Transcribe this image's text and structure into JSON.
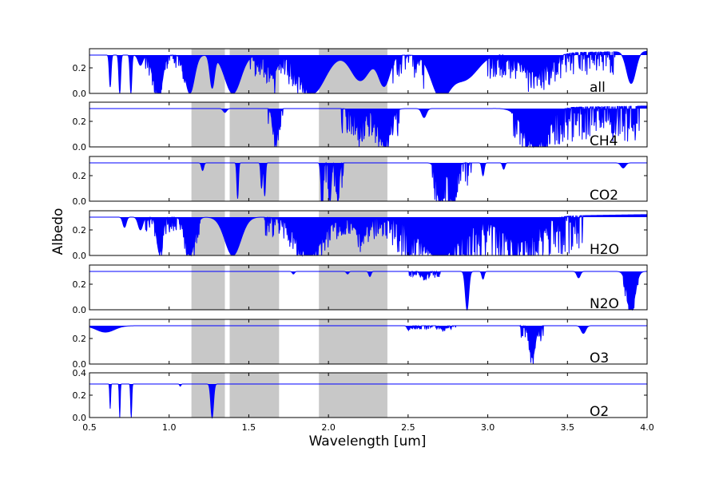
{
  "chart_data": {
    "type": "area",
    "xlabel": "Wavelength [um]",
    "ylabel": "Albedo",
    "xlim": [
      0.5,
      4.0
    ],
    "xticks": [
      "0.5",
      "1.0",
      "1.5",
      "2.0",
      "2.5",
      "3.0",
      "3.5",
      "4.0"
    ],
    "xtick_values": [
      0.5,
      1.0,
      1.5,
      2.0,
      2.5,
      3.0,
      3.5,
      4.0
    ],
    "color": "#0000ff",
    "band_color": "#c8c8c8",
    "shaded_bands": [
      [
        1.14,
        1.35
      ],
      [
        1.38,
        1.69
      ],
      [
        1.94,
        2.37
      ]
    ],
    "panels": [
      {
        "name": "all",
        "ylim": [
          0.0,
          0.35
        ],
        "yticks": [
          "0.0",
          "0.2"
        ],
        "ytick_values": [
          0.0,
          0.2
        ],
        "baseline": 0.3,
        "absorption": [
          {
            "center": 0.63,
            "width": 0.008,
            "depth": 0.25
          },
          {
            "center": 0.69,
            "width": 0.008,
            "depth": 0.3
          },
          {
            "center": 0.76,
            "width": 0.008,
            "depth": 0.3
          },
          {
            "center": 0.82,
            "width": 0.02,
            "depth": 0.08
          },
          {
            "center": 0.9,
            "width": 0.03,
            "depth": 0.12
          },
          {
            "center": 0.94,
            "width": 0.03,
            "depth": 0.28
          },
          {
            "center": 1.13,
            "width": 0.04,
            "depth": 0.3
          },
          {
            "center": 1.27,
            "width": 0.02,
            "depth": 0.25
          },
          {
            "center": 1.4,
            "width": 0.07,
            "depth": 0.3
          },
          {
            "center": 1.65,
            "width": 0.04,
            "depth": 0.15
          },
          {
            "center": 1.9,
            "width": 0.11,
            "depth": 0.3
          },
          {
            "center": 2.2,
            "width": 0.08,
            "depth": 0.2
          },
          {
            "center": 2.35,
            "width": 0.05,
            "depth": 0.24
          },
          {
            "center": 2.7,
            "width": 0.08,
            "depth": 0.3
          },
          {
            "center": 2.85,
            "width": 0.12,
            "depth": 0.2
          },
          {
            "center": 3.3,
            "width": 0.12,
            "depth": 0.15
          },
          {
            "center": 3.9,
            "width": 0.04,
            "depth": 0.25
          }
        ],
        "noise_ranges": [
          [
            0.85,
            1.1,
            0.1
          ],
          [
            1.5,
            1.9,
            0.18
          ],
          [
            2.4,
            2.6,
            0.22
          ],
          [
            3.0,
            3.8,
            0.18
          ]
        ]
      },
      {
        "name": "CH4",
        "ylim": [
          0.0,
          0.35
        ],
        "yticks": [
          "0.0",
          "0.2"
        ],
        "ytick_values": [
          0.0,
          0.2
        ],
        "baseline": 0.3,
        "absorption": [
          {
            "center": 1.35,
            "width": 0.015,
            "depth": 0.03
          },
          {
            "center": 1.67,
            "width": 0.02,
            "depth": 0.24
          },
          {
            "center": 2.2,
            "width": 0.05,
            "depth": 0.1
          },
          {
            "center": 2.35,
            "width": 0.05,
            "depth": 0.27
          },
          {
            "center": 2.6,
            "width": 0.02,
            "depth": 0.07
          },
          {
            "center": 3.3,
            "width": 0.1,
            "depth": 0.3
          }
        ],
        "noise_ranges": [
          [
            1.62,
            1.72,
            0.12
          ],
          [
            2.08,
            2.45,
            0.2
          ],
          [
            3.15,
            3.95,
            0.28
          ]
        ]
      },
      {
        "name": "CO2",
        "ylim": [
          0.0,
          0.35
        ],
        "yticks": [
          "0.0",
          "0.2"
        ],
        "ytick_values": [
          0.0,
          0.2
        ],
        "baseline": 0.3,
        "absorption": [
          {
            "center": 1.21,
            "width": 0.01,
            "depth": 0.06
          },
          {
            "center": 1.43,
            "width": 0.007,
            "depth": 0.28
          },
          {
            "center": 1.58,
            "width": 0.007,
            "depth": 0.2
          },
          {
            "center": 1.6,
            "width": 0.007,
            "depth": 0.26
          },
          {
            "center": 1.96,
            "width": 0.01,
            "depth": 0.3
          },
          {
            "center": 2.01,
            "width": 0.01,
            "depth": 0.3
          },
          {
            "center": 2.06,
            "width": 0.01,
            "depth": 0.3
          },
          {
            "center": 2.7,
            "width": 0.03,
            "depth": 0.3
          },
          {
            "center": 2.78,
            "width": 0.03,
            "depth": 0.3
          },
          {
            "center": 2.97,
            "width": 0.01,
            "depth": 0.1
          },
          {
            "center": 3.1,
            "width": 0.01,
            "depth": 0.05
          },
          {
            "center": 3.85,
            "width": 0.02,
            "depth": 0.04
          }
        ],
        "noise_ranges": [
          [
            1.95,
            2.1,
            0.2
          ],
          [
            2.65,
            2.9,
            0.22
          ]
        ]
      },
      {
        "name": "H2O",
        "ylim": [
          0.0,
          0.35
        ],
        "yticks": [
          "0.0",
          "0.2"
        ],
        "ytick_values": [
          0.0,
          0.2
        ],
        "baseline": 0.3,
        "absorption": [
          {
            "center": 0.72,
            "width": 0.015,
            "depth": 0.08
          },
          {
            "center": 0.82,
            "width": 0.02,
            "depth": 0.1
          },
          {
            "center": 0.94,
            "width": 0.025,
            "depth": 0.28
          },
          {
            "center": 1.13,
            "width": 0.04,
            "depth": 0.3
          },
          {
            "center": 1.4,
            "width": 0.07,
            "depth": 0.3
          },
          {
            "center": 1.88,
            "width": 0.11,
            "depth": 0.3
          },
          {
            "center": 2.2,
            "width": 0.06,
            "depth": 0.12
          },
          {
            "center": 2.7,
            "width": 0.18,
            "depth": 0.3
          },
          {
            "center": 3.2,
            "width": 0.15,
            "depth": 0.2
          }
        ],
        "noise_ranges": [
          [
            0.85,
            1.2,
            0.12
          ],
          [
            1.6,
            2.4,
            0.16
          ],
          [
            2.4,
            3.6,
            0.3
          ]
        ]
      },
      {
        "name": "N2O",
        "ylim": [
          0.0,
          0.35
        ],
        "yticks": [
          "0.0",
          "0.2"
        ],
        "ytick_values": [
          0.0,
          0.2
        ],
        "baseline": 0.3,
        "absorption": [
          {
            "center": 1.78,
            "width": 0.01,
            "depth": 0.02
          },
          {
            "center": 2.12,
            "width": 0.01,
            "depth": 0.02
          },
          {
            "center": 2.26,
            "width": 0.01,
            "depth": 0.04
          },
          {
            "center": 2.6,
            "width": 0.02,
            "depth": 0.04
          },
          {
            "center": 2.87,
            "width": 0.015,
            "depth": 0.3
          },
          {
            "center": 2.97,
            "width": 0.01,
            "depth": 0.06
          },
          {
            "center": 3.57,
            "width": 0.015,
            "depth": 0.05
          },
          {
            "center": 3.9,
            "width": 0.035,
            "depth": 0.3
          }
        ],
        "noise_ranges": [
          [
            2.5,
            2.7,
            0.05
          ],
          [
            3.85,
            3.95,
            0.1
          ]
        ]
      },
      {
        "name": "O3",
        "ylim": [
          0.0,
          0.35
        ],
        "yticks": [
          "0.0",
          "0.2"
        ],
        "ytick_values": [
          0.0,
          0.2
        ],
        "baseline": 0.3,
        "absorption": [
          {
            "center": 0.6,
            "width": 0.08,
            "depth": 0.05
          },
          {
            "center": 2.5,
            "width": 0.01,
            "depth": 0.03
          },
          {
            "center": 2.72,
            "width": 0.02,
            "depth": 0.03
          },
          {
            "center": 3.28,
            "width": 0.025,
            "depth": 0.25
          },
          {
            "center": 3.6,
            "width": 0.02,
            "depth": 0.06
          }
        ],
        "noise_ranges": [
          [
            2.5,
            2.8,
            0.03
          ],
          [
            3.2,
            3.35,
            0.12
          ]
        ]
      },
      {
        "name": "O2",
        "ylim": [
          0.0,
          0.4
        ],
        "yticks": [
          "0.0",
          "0.2",
          "0.4"
        ],
        "ytick_values": [
          0.0,
          0.2,
          0.4
        ],
        "baseline": 0.3,
        "absorption": [
          {
            "center": 0.63,
            "width": 0.004,
            "depth": 0.22
          },
          {
            "center": 0.69,
            "width": 0.004,
            "depth": 0.3
          },
          {
            "center": 0.762,
            "width": 0.005,
            "depth": 0.3
          },
          {
            "center": 1.07,
            "width": 0.006,
            "depth": 0.02
          },
          {
            "center": 1.27,
            "width": 0.012,
            "depth": 0.3
          }
        ],
        "noise_ranges": []
      }
    ]
  }
}
